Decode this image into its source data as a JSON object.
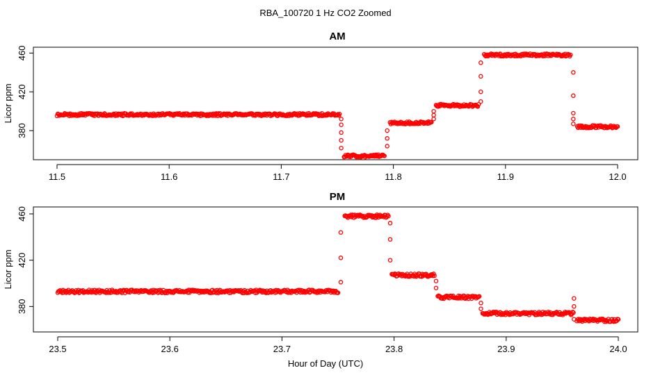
{
  "figure": {
    "title": "RBA_100720  1 Hz CO2 Zoomed",
    "xlabel": "Hour of Day (UTC)",
    "marker_color": "#ff0000"
  },
  "chart_data": [
    {
      "type": "scatter",
      "title": "AM",
      "xlabel": "",
      "ylabel": "Licor ppm",
      "xlim": [
        11.5,
        12.0
      ],
      "ylim": [
        350,
        466
      ],
      "xticks": [
        11.5,
        11.6,
        11.7,
        11.8,
        11.9,
        12.0
      ],
      "xtick_labels": [
        "11.5",
        "11.6",
        "11.7",
        "11.8",
        "11.9",
        "12.0"
      ],
      "yticks": [
        380,
        420,
        460
      ],
      "ytick_labels": [
        "380",
        "420",
        "460"
      ],
      "grid": false,
      "marker": "open-circle",
      "series": [
        {
          "segments": [
            {
              "x_start": 11.5,
              "x_end": 11.752,
              "y": 396.5
            },
            {
              "x_start": 11.756,
              "x_end": 11.792,
              "y": 354
            },
            {
              "x_start": 11.797,
              "x_end": 11.834,
              "y": 388
            },
            {
              "x_start": 11.838,
              "x_end": 11.876,
              "y": 406
            },
            {
              "x_start": 11.881,
              "x_end": 11.958,
              "y": 458
            },
            {
              "x_start": 11.964,
              "x_end": 12.0,
              "y": 384
            }
          ],
          "transitions": [
            {
              "x": 11.7535,
              "y": [
                392,
                386,
                378,
                370,
                362
              ]
            },
            {
              "x": 11.7945,
              "y": [
                364,
                372,
                380
              ]
            },
            {
              "x": 11.836,
              "y": [
                392,
                396,
                400
              ]
            },
            {
              "x": 11.878,
              "y": [
                410,
                420,
                436,
                450
              ]
            },
            {
              "x": 11.9605,
              "y": [
                440,
                416,
                398,
                392,
                387
              ]
            }
          ]
        }
      ]
    },
    {
      "type": "scatter",
      "title": "PM",
      "xlabel": "",
      "ylabel": "Licor ppm",
      "xlim": [
        23.5,
        24.0
      ],
      "ylim": [
        358,
        466
      ],
      "xticks": [
        23.5,
        23.6,
        23.7,
        23.8,
        23.9,
        24.0
      ],
      "xtick_labels": [
        "23.5",
        "23.6",
        "23.7",
        "23.8",
        "23.9",
        "24.0"
      ],
      "yticks": [
        380,
        420,
        460
      ],
      "ytick_labels": [
        "380",
        "420",
        "460"
      ],
      "grid": false,
      "marker": "open-circle",
      "series": [
        {
          "segments": [
            {
              "x_start": 23.5,
              "x_end": 23.75,
              "y": 393
            },
            {
              "x_start": 23.756,
              "x_end": 23.795,
              "y": 458
            },
            {
              "x_start": 23.798,
              "x_end": 23.836,
              "y": 407
            },
            {
              "x_start": 23.839,
              "x_end": 23.876,
              "y": 388
            },
            {
              "x_start": 23.879,
              "x_end": 23.96,
              "y": 374
            },
            {
              "x_start": 23.963,
              "x_end": 24.0,
              "y": 368
            }
          ],
          "transitions": [
            {
              "x": 23.7525,
              "y": [
                401,
                422,
                444
              ]
            },
            {
              "x": 23.7965,
              "y": [
                452,
                438,
                420
              ]
            },
            {
              "x": 23.8375,
              "y": [
                402,
                396
              ]
            },
            {
              "x": 23.8775,
              "y": [
                383,
                378
              ]
            },
            {
              "x": 23.9605,
              "y": [
                387,
                380,
                369
              ]
            }
          ]
        }
      ]
    }
  ]
}
